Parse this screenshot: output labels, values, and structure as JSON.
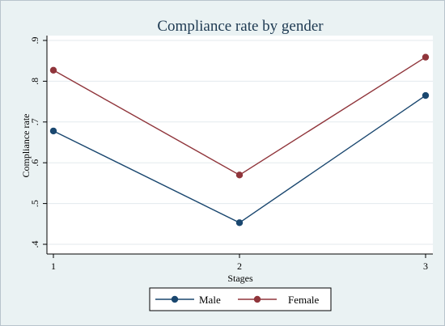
{
  "chart_data": {
    "type": "line",
    "title": "Compliance rate by gender",
    "xlabel": "Stages",
    "ylabel": "Compliance rate",
    "x": [
      1,
      2,
      3
    ],
    "x_tick_labels": [
      "1",
      "2",
      "3"
    ],
    "y_ticks": [
      0.4,
      0.5,
      0.6,
      0.7,
      0.8,
      0.9
    ],
    "y_tick_labels": [
      ".4",
      ".5",
      ".6",
      ".7",
      ".8",
      ".9"
    ],
    "xlim": [
      1,
      3
    ],
    "ylim": [
      0.4,
      0.9
    ],
    "grid": true,
    "legend_position": "bottom",
    "series": [
      {
        "name": "Male",
        "values": [
          0.678,
          0.453,
          0.765
        ],
        "color": "#1a476f"
      },
      {
        "name": "Female",
        "values": [
          0.827,
          0.57,
          0.859
        ],
        "color": "#90353b"
      }
    ]
  }
}
